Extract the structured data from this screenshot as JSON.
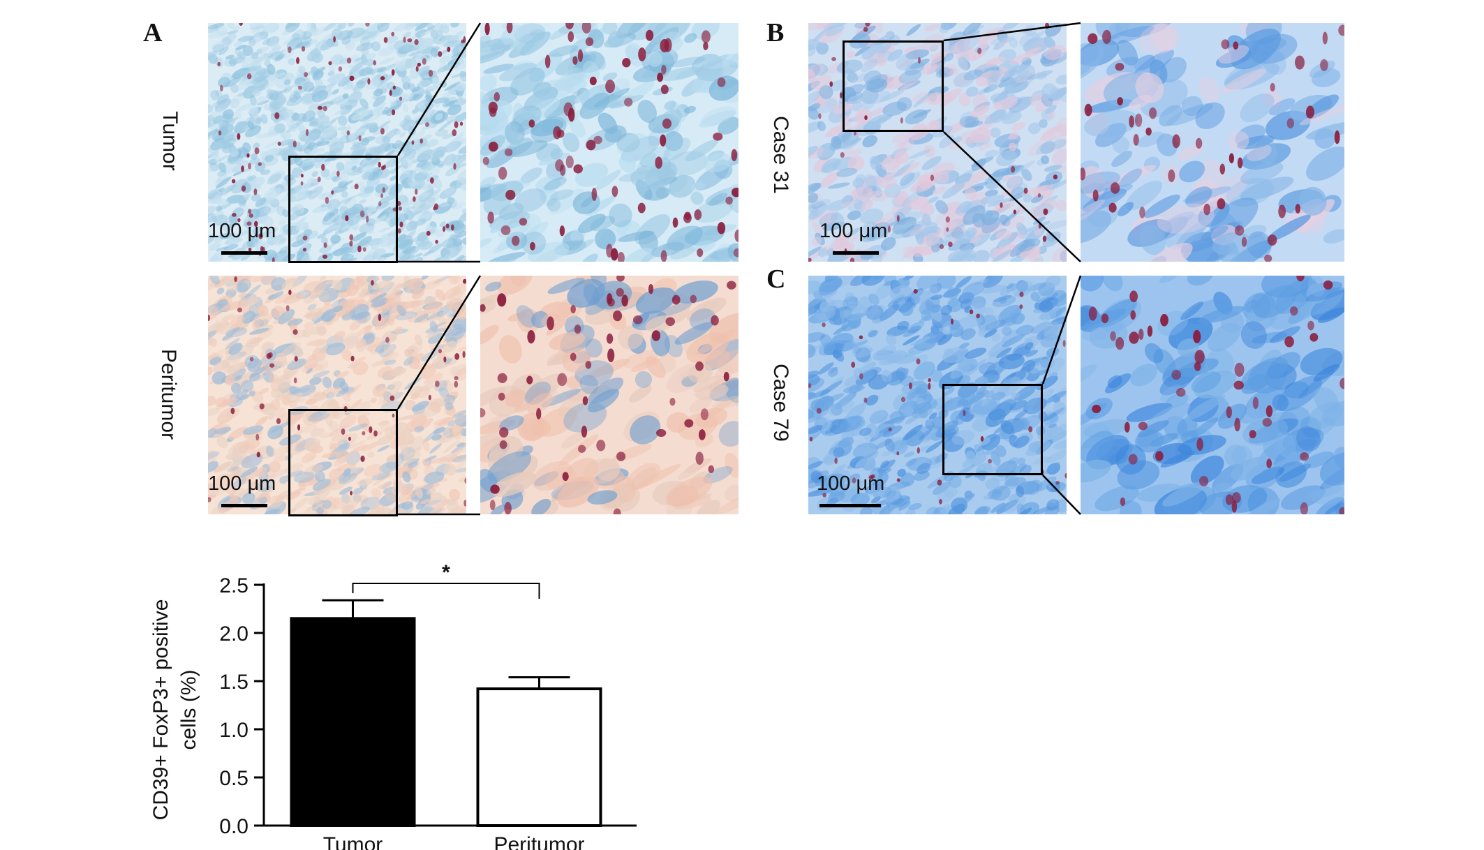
{
  "panels": {
    "A": {
      "letter": "A",
      "rows": [
        {
          "label": "Tumor",
          "scale": "100 μm",
          "tone": "blue-light"
        },
        {
          "label": "Peritumor",
          "scale": "100 μm",
          "tone": "pink"
        }
      ]
    },
    "B": {
      "letter": "B",
      "label": "Case 31",
      "scale": "100 μm",
      "tone": "blue-pink"
    },
    "C": {
      "letter": "C",
      "label": "Case 79",
      "scale": "100 μm",
      "tone": "blue-deep"
    }
  },
  "chart_data": {
    "type": "bar",
    "categories": [
      "Tumor",
      "Peritumor"
    ],
    "values": [
      2.15,
      1.42
    ],
    "errors": [
      0.19,
      0.12
    ],
    "bar_colors": [
      "#000000",
      "#ffffff"
    ],
    "ylabel_line1": "CD39+ FoxP3+ positive",
    "ylabel_line2": "cells (%)",
    "yticks": [
      "0.0",
      "0.5",
      "1.0",
      "1.5",
      "2.0",
      "2.5"
    ],
    "ylim": [
      0,
      2.5
    ],
    "significance": "*"
  },
  "colors": {
    "blue-light": "#b9d9ea",
    "pink": "#f3dccf",
    "blue-pink": "#9fc3e6",
    "blue-deep": "#5f9fe0",
    "cell": "#8a1c3c"
  }
}
